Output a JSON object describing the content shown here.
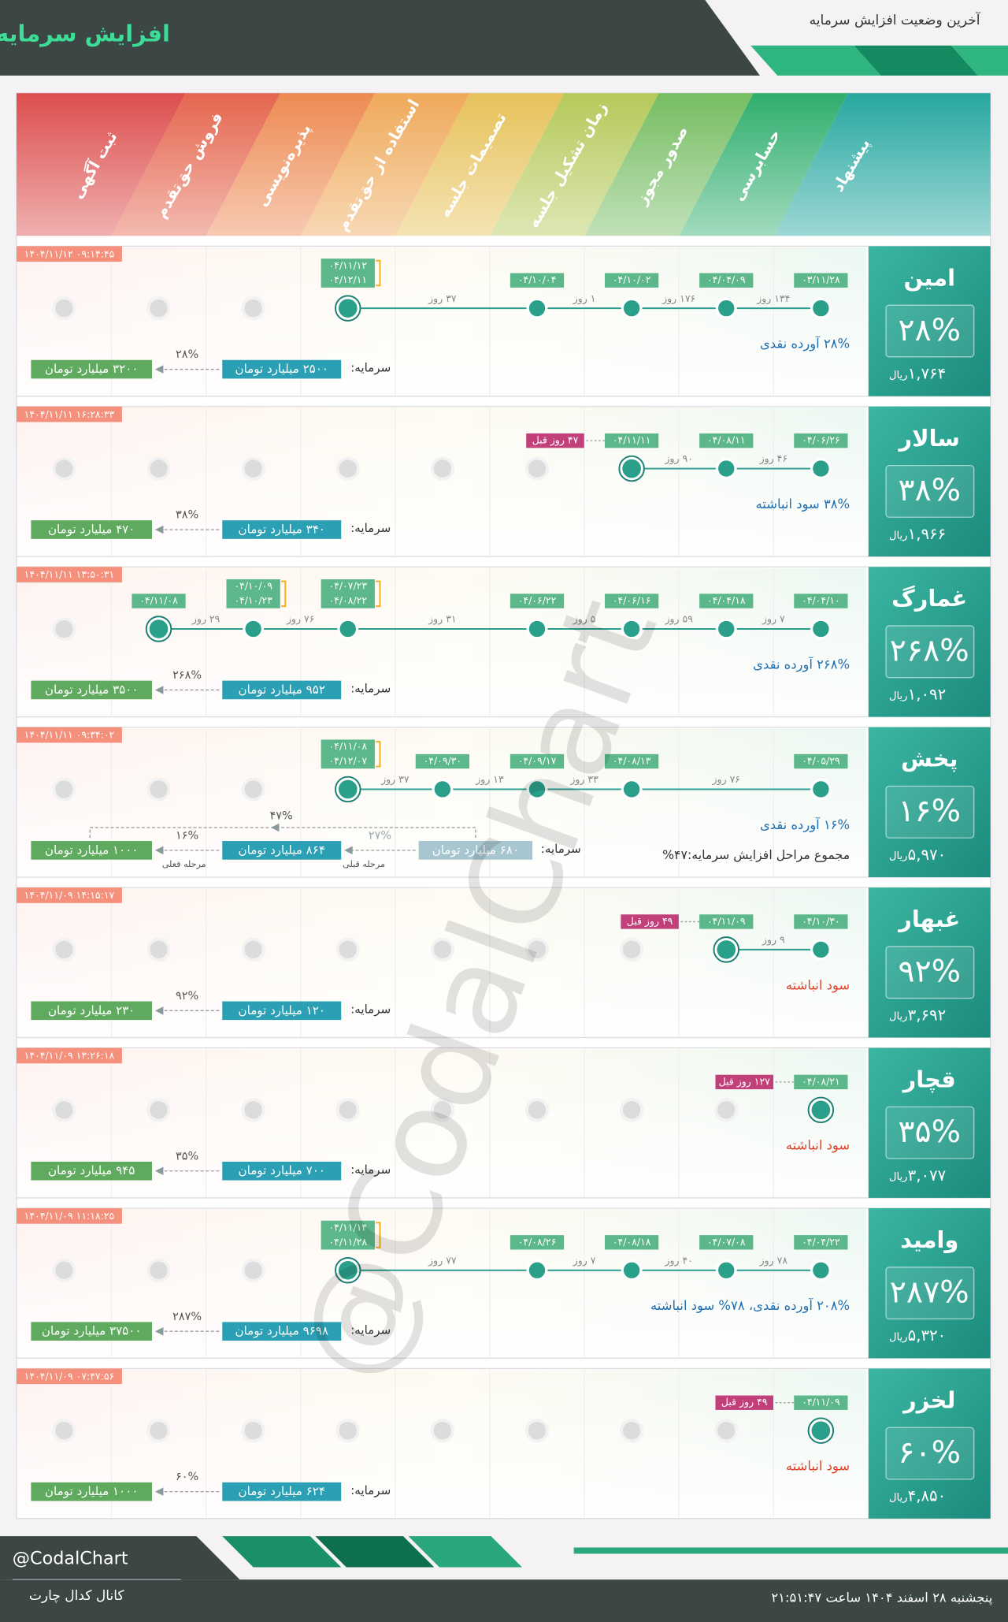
{
  "header": {
    "title": "افزایش سرمایه",
    "subtitle": "آخرین وضعیت افزایش سرمایه"
  },
  "stages": [
    "پیشنهاد",
    "حسابرسی",
    "صدور مجوز",
    "زمان تشکیل جلسه",
    "تصمیمات جلسه",
    "استفاده از حق‌تقدم",
    "پذیره‌نویسی",
    "فروش حق‌تقدم",
    "ثبت آگهی"
  ],
  "capital_label": "سرمایه:",
  "currency": "ریال",
  "companies": [
    {
      "name": "امین",
      "percent": "۲۸%",
      "price": "۱,۷۶۴",
      "time": "۱۴۰۴/۱۱/۱۲ ۰۹:۱۴:۴۵",
      "stages": [
        {
          "dates": [
            "۰۳/۱۱/۲۸"
          ]
        },
        {
          "dates": [
            "۰۴/۰۴/۰۹"
          ],
          "gap": "۱۳۴ روز"
        },
        {
          "dates": [
            "۰۴/۱۰/۰۲"
          ],
          "gap": "۱۷۶ روز"
        },
        {
          "dates": [
            "۰۴/۱۰/۰۴"
          ],
          "gap": "۱ روز"
        },
        null,
        {
          "dates": [
            "۰۴/۱۱/۱۲",
            "۰۴/۱۲/۱۱"
          ],
          "gap": "۳۷ روز"
        },
        null,
        null,
        null
      ],
      "note": "۲۸% آورده نقدی",
      "note_color": "#1f6fb2",
      "capital": {
        "current": "۲۵۰۰ میلیارد تومان",
        "percent": "۲۸%",
        "new": "۳۲۰۰ میلیارد تومان"
      }
    },
    {
      "name": "سالار",
      "percent": "۳۸%",
      "price": "۱,۹۶۶",
      "time": "۱۴۰۴/۱۱/۱۱ ۱۶:۲۸:۳۳",
      "stages": [
        {
          "dates": [
            "۰۴/۰۶/۲۶"
          ]
        },
        {
          "dates": [
            "۰۴/۰۸/۱۱"
          ],
          "gap": "۴۶ روز"
        },
        {
          "dates": [
            "۰۴/۱۱/۱۱"
          ],
          "gap": "۹۰ روز"
        },
        null,
        null,
        null,
        null,
        null,
        null
      ],
      "since": "۴۷ روز قبل",
      "note": "۳۸% سود انباشته",
      "note_color": "#1f6fb2",
      "capital": {
        "current": "۳۴۰ میلیارد تومان",
        "percent": "۳۸%",
        "new": "۴۷۰ میلیارد تومان"
      }
    },
    {
      "name": "غمارگ",
      "percent": "۲۶۸%",
      "price": "۱,۰۹۲",
      "time": "۱۴۰۴/۱۱/۱۱ ۱۳:۵۰:۳۱",
      "stages": [
        {
          "dates": [
            "۰۴/۰۴/۱۰"
          ]
        },
        {
          "dates": [
            "۰۴/۰۴/۱۸"
          ],
          "gap": "۷ روز"
        },
        {
          "dates": [
            "۰۴/۰۶/۱۶"
          ],
          "gap": "۵۹ روز"
        },
        {
          "dates": [
            "۰۴/۰۶/۲۲"
          ],
          "gap": "۵ روز"
        },
        null,
        {
          "dates": [
            "۰۴/۰۷/۲۳",
            "۰۴/۰۸/۲۲"
          ],
          "gap": "۳۱ روز"
        },
        {
          "dates": [
            "۰۴/۱۰/۰۹",
            "۰۴/۱۰/۲۳"
          ],
          "gap": "۷۶ روز"
        },
        {
          "dates": [
            "۰۴/۱۱/۰۸"
          ],
          "gap": "۲۹ روز"
        },
        null
      ],
      "note": "۲۶۸% آورده نقدی",
      "note_color": "#1f6fb2",
      "capital": {
        "current": "۹۵۲ میلیارد تومان",
        "percent": "۲۶۸%",
        "new": "۳۵۰۰ میلیارد تومان"
      }
    },
    {
      "name": "پخش",
      "percent": "۱۶%",
      "price": "۵,۹۷۰",
      "time": "۱۴۰۴/۱۱/۱۱ ۰۹:۳۴:۰۲",
      "stages": [
        {
          "dates": [
            "۰۴/۰۵/۲۹"
          ]
        },
        null,
        {
          "dates": [
            "۰۴/۰۸/۱۳"
          ],
          "gap": "۷۶ روز"
        },
        {
          "dates": [
            "۰۴/۰۹/۱۷"
          ],
          "gap": "۳۳ روز"
        },
        {
          "dates": [
            "۰۴/۰۹/۳۰"
          ],
          "gap": "۱۳ روز"
        },
        {
          "dates": [
            "۰۴/۱۱/۰۸",
            "۰۴/۱۲/۰۷"
          ],
          "gap": "۳۷ روز"
        },
        null,
        null,
        null
      ],
      "note": "۱۶% آورده نقدی",
      "note_color": "#1f6fb2",
      "total_note": "مجموع مراحل افزایش سرمایه:۴۷%",
      "capital": {
        "previous": "۶۸۰ میلیارد تومان",
        "previous_percent": "۲۷%",
        "previous_label": "مرحله قبلی",
        "current": "۸۶۴ میلیارد تومان",
        "percent": "۱۶%",
        "current_label": "مرحله فعلی",
        "new": "۱۰۰۰ میلیارد تومان",
        "total_percent": "۴۷%"
      }
    },
    {
      "name": "غبهار",
      "percent": "۹۲%",
      "price": "۳,۶۹۲",
      "time": "۱۴۰۴/۱۱/۰۹ ۱۴:۱۵:۱۷",
      "stages": [
        {
          "dates": [
            "۰۴/۱۰/۳۰"
          ]
        },
        {
          "dates": [
            "۰۴/۱۱/۰۹"
          ],
          "gap": "۹ روز"
        },
        null,
        null,
        null,
        null,
        null,
        null,
        null
      ],
      "since": "۴۹ روز قبل",
      "note": "سود انباشته",
      "note_color": "#e0442b",
      "capital": {
        "current": "۱۲۰ میلیارد تومان",
        "percent": "۹۲%",
        "new": "۲۳۰ میلیارد تومان"
      }
    },
    {
      "name": "قچار",
      "percent": "۳۵%",
      "price": "۳,۰۷۷",
      "time": "۱۴۰۴/۱۱/۰۹ ۱۳:۲۶:۱۸",
      "stages": [
        {
          "dates": [
            "۰۴/۰۸/۲۱"
          ]
        },
        null,
        null,
        null,
        null,
        null,
        null,
        null,
        null
      ],
      "since": "۱۲۷ روز قبل",
      "note": "سود انباشته",
      "note_color": "#e0442b",
      "capital": {
        "current": "۷۰۰ میلیارد تومان",
        "percent": "۳۵%",
        "new": "۹۴۵ میلیارد تومان"
      }
    },
    {
      "name": "وامید",
      "percent": "۲۸۷%",
      "price": "۵,۳۲۰",
      "time": "۱۴۰۴/۱۱/۰۹ ۱۱:۱۸:۲۵",
      "stages": [
        {
          "dates": [
            "۰۴/۰۴/۲۲"
          ]
        },
        {
          "dates": [
            "۰۴/۰۷/۰۸"
          ],
          "gap": "۷۸ روز"
        },
        {
          "dates": [
            "۰۴/۰۸/۱۸"
          ],
          "gap": "۴۰ روز"
        },
        {
          "dates": [
            "۰۴/۰۸/۲۶"
          ],
          "gap": "۷ روز"
        },
        null,
        {
          "dates": [
            "۰۴/۱۱/۱۴",
            "۰۴/۱۱/۲۸"
          ],
          "gap": "۷۷ روز"
        },
        null,
        null,
        null
      ],
      "note": "۲۰۸% آورده نقدی، ۷۸% سود انباشته",
      "note_color": "#1f6fb2",
      "capital": {
        "current": "۹۶۹۸ میلیارد تومان",
        "percent": "۲۸۷%",
        "new": "۳۷۵۰۰ میلیارد تومان"
      }
    },
    {
      "name": "لخزر",
      "percent": "۶۰%",
      "price": "۴,۸۵۰",
      "time": "۱۴۰۴/۱۱/۰۹ ۰۷:۴۷:۵۶",
      "stages": [
        {
          "dates": [
            "۰۴/۱۱/۰۹"
          ]
        },
        null,
        null,
        null,
        null,
        null,
        null,
        null,
        null
      ],
      "since": "۴۹ روز قبل",
      "note": "سود انباشته",
      "note_color": "#e0442b",
      "capital": {
        "current": "۶۲۴ میلیارد تومان",
        "percent": "۶۰%",
        "new": "۱۰۰۰ میلیارد تومان"
      }
    }
  ],
  "watermark": "@CodalChart",
  "footer": {
    "handle": "@CodalChart",
    "channel": "کانال کدال چارت",
    "date": "پنجشنبه ۲۸ اسفند ۱۴۰۴ ساعت ۲۱:۵۱:۴۷"
  }
}
